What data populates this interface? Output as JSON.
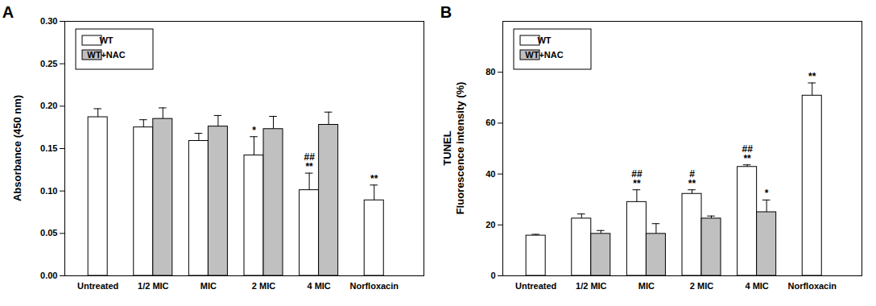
{
  "chart_data": [
    {
      "type": "bar",
      "title": "A",
      "ylabel": "Absorbance (450 nm)",
      "categories": [
        "Untreated",
        "1/2 MIC",
        "MIC",
        "2 MIC",
        "4 MIC",
        "Norfloxacin"
      ],
      "series": [
        {
          "name": "WT",
          "color": "#ffffff",
          "values": [
            0.187,
            0.175,
            0.159,
            0.142,
            0.101,
            0.089
          ],
          "errors": [
            0.01,
            0.009,
            0.009,
            0.022,
            0.02,
            0.018
          ],
          "annotations": [
            null,
            null,
            null,
            [
              "*"
            ],
            [
              "##",
              "**"
            ],
            [
              "**"
            ]
          ]
        },
        {
          "name": "WT+NAC",
          "color": "#c0c0c0",
          "values": [
            null,
            0.185,
            0.176,
            0.173,
            0.178,
            null
          ],
          "errors": [
            null,
            0.013,
            0.013,
            0.015,
            0.015,
            null
          ],
          "annotations": [
            null,
            null,
            null,
            null,
            null,
            null
          ]
        }
      ],
      "ylim": [
        0,
        0.3
      ],
      "yticks": [
        {
          "value": 0,
          "label": "0.00"
        },
        {
          "value": 0.05,
          "label": "0.05"
        },
        {
          "value": 0.1,
          "label": "0.10"
        },
        {
          "value": 0.15,
          "label": "0.15"
        },
        {
          "value": 0.2,
          "label": "0.20"
        },
        {
          "value": 0.25,
          "label": "0.25"
        },
        {
          "value": 0.3,
          "label": "0.30"
        }
      ],
      "legend": "upper left",
      "grid": false
    },
    {
      "type": "bar",
      "title": "B",
      "ylabel": "TUNEL\nFluorescence intensity (%)",
      "categories": [
        "Untreated",
        "1/2 MIC",
        "MIC",
        "2 MIC",
        "4 MIC",
        "Norfloxacin"
      ],
      "series": [
        {
          "name": "WT",
          "color": "#ffffff",
          "values": [
            15.8,
            22.5,
            29.0,
            32.2,
            42.8,
            70.8
          ],
          "errors": [
            0.5,
            1.8,
            4.8,
            1.6,
            0.8,
            5.0
          ],
          "annotations": [
            null,
            null,
            [
              "##",
              "**"
            ],
            [
              "#",
              "**"
            ],
            [
              "##",
              "**"
            ],
            [
              "**"
            ]
          ]
        },
        {
          "name": "WT+NAC",
          "color": "#c0c0c0",
          "values": [
            null,
            16.5,
            16.5,
            22.5,
            25.0,
            null
          ],
          "errors": [
            null,
            1.3,
            4.0,
            1.0,
            4.8,
            null
          ],
          "annotations": [
            null,
            null,
            null,
            null,
            [
              "*"
            ],
            null
          ]
        }
      ],
      "ylim": [
        0,
        100
      ],
      "yticks": [
        0,
        20,
        40,
        60,
        80
      ],
      "legend": "upper left",
      "grid": false
    }
  ]
}
